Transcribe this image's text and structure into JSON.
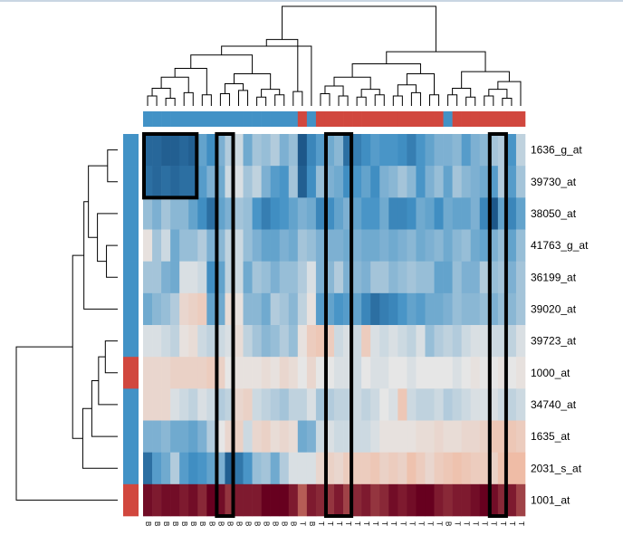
{
  "chart_data": {
    "type": "heatmap",
    "title": "",
    "xlabel": "",
    "ylabel": "",
    "rows": [
      "1636_g_at",
      "39730_at",
      "38050_at",
      "41763_g_at",
      "36199_at",
      "39020_at",
      "39723_at",
      "1000_at",
      "34740_at",
      "1635_at",
      "2031_s_at",
      "1001_at"
    ],
    "columns": [
      "B",
      "B",
      "B",
      "B",
      "B",
      "B",
      "B",
      "B",
      "B",
      "B",
      "B",
      "B",
      "B",
      "B",
      "B",
      "B",
      "B",
      "T",
      "B",
      "T",
      "T",
      "T",
      "T",
      "T",
      "T",
      "T",
      "T",
      "T",
      "T",
      "T",
      "T",
      "T",
      "T",
      "B",
      "T",
      "T",
      "T",
      "T",
      "T",
      "T",
      "T",
      "T"
    ],
    "column_groups": [
      "B",
      "B",
      "B",
      "B",
      "B",
      "B",
      "B",
      "B",
      "B",
      "B",
      "B",
      "B",
      "B",
      "B",
      "B",
      "B",
      "B",
      "T",
      "B",
      "T",
      "T",
      "T",
      "T",
      "T",
      "T",
      "T",
      "T",
      "T",
      "T",
      "T",
      "T",
      "T",
      "T",
      "B",
      "T",
      "T",
      "T",
      "T",
      "T",
      "T",
      "T",
      "T"
    ],
    "row_groups": [
      "blue",
      "blue",
      "blue",
      "blue",
      "blue",
      "blue",
      "blue",
      "red",
      "blue",
      "blue",
      "blue",
      "red"
    ],
    "values": [
      [
        -1.8,
        -1.8,
        -1.9,
        -1.9,
        -1.8,
        -1.9,
        -1.0,
        -1.3,
        -0.8,
        -0.4,
        -0.2,
        -0.9,
        -0.5,
        -0.6,
        -0.4,
        -0.8,
        -0.6,
        -2.0,
        -1.4,
        -1.1,
        -0.9,
        -0.7,
        -1.7,
        -1.5,
        -1.3,
        -1.1,
        -1.2,
        -1.2,
        -1.3,
        -1.5,
        -1.2,
        -1.0,
        -0.8,
        -0.8,
        -0.7,
        -1.1,
        -0.8,
        -0.7,
        -0.5,
        -0.4,
        -1.2,
        -0.3
      ],
      [
        -1.7,
        -1.8,
        -1.7,
        -1.8,
        -1.7,
        -1.7,
        -1.1,
        -0.8,
        -0.9,
        -0.2,
        -0.1,
        -0.5,
        -0.3,
        -0.8,
        -1.1,
        -1.2,
        -0.5,
        -1.9,
        -1.3,
        -0.6,
        -0.8,
        -0.9,
        -1.3,
        -1.2,
        -1.0,
        -1.3,
        -0.8,
        -0.7,
        -0.5,
        -0.7,
        -1.2,
        -0.8,
        -0.6,
        -1.0,
        -0.5,
        -0.7,
        -0.8,
        -0.9,
        -1.1,
        -0.4,
        -1.1,
        -0.5
      ],
      [
        -0.6,
        -0.8,
        -0.5,
        -0.7,
        -0.7,
        -1.0,
        -1.3,
        -1.7,
        -1.0,
        -0.8,
        -0.5,
        -0.6,
        -1.2,
        -1.5,
        -1.3,
        -1.2,
        -1.0,
        -0.8,
        -0.9,
        -1.4,
        -1.3,
        -1.0,
        -0.8,
        -1.0,
        -1.2,
        -1.2,
        -0.9,
        -1.4,
        -1.4,
        -1.3,
        -0.9,
        -1.0,
        -1.3,
        -0.9,
        -1.0,
        -1.0,
        -0.8,
        -1.4,
        -2.0,
        -1.0,
        -1.4,
        -1.0
      ],
      [
        0.1,
        -0.5,
        -0.2,
        -0.9,
        -0.6,
        -0.6,
        -0.4,
        -0.8,
        -0.7,
        -0.3,
        -0.2,
        -0.6,
        -0.8,
        -1.0,
        -1.0,
        -0.8,
        -0.9,
        -0.5,
        -0.6,
        -0.8,
        -0.8,
        -0.8,
        -0.9,
        -0.8,
        -0.9,
        -0.9,
        -0.8,
        -0.9,
        -0.8,
        -0.7,
        -0.9,
        -0.8,
        -0.7,
        -0.9,
        -0.7,
        -0.6,
        -0.9,
        -1.0,
        -0.8,
        -0.6,
        -1.0,
        -0.6
      ],
      [
        -0.5,
        -0.5,
        -0.8,
        -0.9,
        -0.1,
        -0.1,
        -0.2,
        -1.3,
        -1.0,
        -0.3,
        -0.2,
        -0.9,
        -0.5,
        -0.6,
        -0.8,
        -0.6,
        -0.6,
        -0.4,
        -0.1,
        -0.8,
        -0.7,
        -0.4,
        -0.8,
        -0.7,
        -0.8,
        -0.5,
        -0.5,
        -0.7,
        -0.6,
        -0.5,
        -0.6,
        -0.6,
        -1.0,
        -1.0,
        -0.6,
        -0.8,
        -0.8,
        -0.4,
        -0.6,
        -0.5,
        -0.8,
        -0.5
      ],
      [
        -0.9,
        -0.7,
        -0.6,
        -0.4,
        0.3,
        0.4,
        0.5,
        -1.0,
        -0.9,
        0.2,
        0.1,
        -0.7,
        -0.7,
        -0.9,
        -0.4,
        -0.5,
        -0.7,
        -0.3,
        0.1,
        -1.1,
        -1.0,
        -1.2,
        -1.1,
        -1.0,
        -1.4,
        -1.7,
        -1.5,
        -1.4,
        -1.2,
        -1.0,
        -1.1,
        -0.9,
        -0.9,
        -0.8,
        -0.6,
        -0.7,
        -0.7,
        -0.6,
        -0.8,
        -0.6,
        -0.7,
        -0.5
      ],
      [
        -0.1,
        -0.1,
        -0.2,
        -0.3,
        0.1,
        0.2,
        -0.2,
        -0.3,
        -0.2,
        -0.1,
        0.2,
        -0.3,
        -0.5,
        -0.7,
        -0.6,
        -0.4,
        -0.6,
        0.1,
        0.5,
        0.6,
        0.5,
        -0.2,
        -0.1,
        -0.2,
        0.5,
        -0.1,
        -0.2,
        -0.1,
        -0.2,
        -0.3,
        -0.1,
        -0.6,
        -0.4,
        -0.3,
        -0.4,
        -0.2,
        -0.1,
        -0.1,
        -0.2,
        -0.2,
        -0.3,
        -0.1
      ],
      [
        0.3,
        0.3,
        0.3,
        0.4,
        0.4,
        0.4,
        0.4,
        0.5,
        0.4,
        0.0,
        0.1,
        0.1,
        0.1,
        0.2,
        0.1,
        0.3,
        0.2,
        0.0,
        0.3,
        0.0,
        0.0,
        -0.1,
        -0.1,
        -0.2,
        0.0,
        -0.1,
        -0.1,
        0.0,
        0.0,
        -0.1,
        0.0,
        0.0,
        0.0,
        0.0,
        -0.1,
        0.0,
        0.1,
        0.0,
        0.0,
        0.1,
        0.0,
        0.1
      ],
      [
        0.3,
        0.3,
        0.3,
        -0.1,
        -0.2,
        -0.3,
        -0.1,
        -0.2,
        -0.4,
        -0.3,
        0.3,
        0.4,
        -0.2,
        -0.3,
        -0.4,
        -0.5,
        -0.3,
        -0.3,
        -0.1,
        -0.5,
        -0.4,
        -0.3,
        -0.3,
        -0.2,
        -0.3,
        -0.2,
        0.0,
        -0.1,
        0.6,
        -0.2,
        -0.3,
        -0.3,
        -0.2,
        -0.4,
        -0.3,
        -0.2,
        -0.1,
        -0.1,
        -0.1,
        -0.2,
        -0.3,
        -0.2
      ],
      [
        -0.8,
        -0.8,
        -0.7,
        -0.9,
        -0.9,
        -1.0,
        -0.8,
        -0.4,
        0.0,
        0.3,
        0.4,
        -0.2,
        0.3,
        0.4,
        0.2,
        0.3,
        0.2,
        -0.9,
        -0.8,
        -0.2,
        -0.1,
        -0.2,
        -0.2,
        -0.2,
        -0.2,
        -0.1,
        0.1,
        0.1,
        0.1,
        0.1,
        0.2,
        0.2,
        0.3,
        0.2,
        0.2,
        0.3,
        0.3,
        0.4,
        0.6,
        0.6,
        0.6,
        0.5
      ],
      [
        -1.7,
        -1.1,
        -0.9,
        -0.4,
        -1.1,
        -1.3,
        -1.2,
        -1.0,
        -0.8,
        -1.9,
        -1.6,
        -1.2,
        -0.6,
        -0.5,
        -0.9,
        -0.4,
        -0.1,
        -0.1,
        -0.1,
        0.3,
        0.4,
        0.3,
        0.5,
        0.5,
        0.5,
        0.6,
        0.4,
        0.5,
        0.4,
        0.7,
        0.5,
        0.3,
        0.5,
        0.6,
        0.7,
        0.6,
        0.5,
        0.5,
        0.4,
        0.7,
        0.8,
        0.8
      ],
      [
        2.4,
        2.3,
        2.4,
        2.4,
        2.3,
        2.4,
        2.2,
        2.5,
        2.4,
        2.1,
        2.3,
        2.3,
        2.3,
        2.5,
        2.6,
        2.6,
        2.3,
        1.8,
        2.3,
        2.2,
        2.1,
        2.3,
        2.0,
        2.2,
        2.3,
        2.1,
        2.2,
        2.4,
        2.3,
        2.4,
        2.5,
        2.5,
        2.3,
        2.2,
        2.3,
        2.3,
        2.4,
        2.6,
        2.4,
        2.2,
        2.3,
        2.0
      ]
    ],
    "color_scale": {
      "low": "#053061",
      "mid": "#e6e6e6",
      "high": "#67001f",
      "min": -2.5,
      "max": 2.5
    },
    "group_colors": {
      "B": "#4292c6",
      "T": "#d1473e",
      "blue": "#4292c6",
      "red": "#d1473e"
    },
    "highlight_boxes": [
      {
        "col_start": 0,
        "col_end": 5,
        "row_start": 0,
        "row_end": 1
      },
      {
        "col_start": 8,
        "col_end": 9,
        "row_start": 0,
        "row_end": 11
      },
      {
        "col_start": 20,
        "col_end": 22,
        "row_start": 0,
        "row_end": 11
      },
      {
        "col_start": 38,
        "col_end": 39,
        "row_start": 0,
        "row_end": 11
      }
    ],
    "col_dendrogram": true,
    "row_dendrogram": true,
    "legend": "none"
  }
}
